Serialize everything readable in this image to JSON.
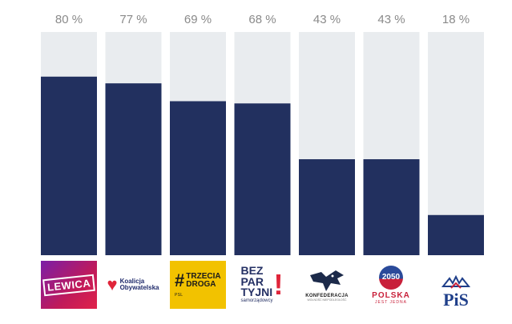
{
  "chart_data": {
    "type": "bar",
    "stacked_background": true,
    "categories": [
      "Lewica",
      "Koalicja Obywatelska",
      "Trzecia Droga",
      "Bezpartyjni Samorządowcy",
      "Konfederacja",
      "Polska 2050",
      "PiS"
    ],
    "values": [
      80,
      77,
      69,
      68,
      43,
      43,
      18
    ],
    "value_labels": [
      "80 %",
      "77 %",
      "69 %",
      "68 %",
      "43 %",
      "43 %",
      "18 %"
    ],
    "ylim": [
      0,
      100
    ],
    "colors": {
      "bar": "#22305f",
      "background": "#e9ecef",
      "label": "#8a8a8a"
    },
    "grid": false,
    "legend": "none"
  },
  "logos": {
    "lewica": {
      "text": "LEWICA"
    },
    "ko": {
      "line1": "Koalicja",
      "line2": "Obywatelska"
    },
    "td": {
      "hash": "#",
      "line1": "TRZECIA",
      "line2": "DROGA",
      "foot": "PSL"
    },
    "bp": {
      "line1": "BEZ",
      "line2": "PAR",
      "line3": "TYJNI",
      "excl": "!",
      "sub": "samorządowcy"
    },
    "kf": {
      "name": "KONFEDERACJA",
      "sub": "WOLNOŚĆ NIEPODLEGŁOŚĆ"
    },
    "pol": {
      "badge": "2050",
      "name": "POLSKA",
      "sub": "JEST JEDNA"
    },
    "pis": {
      "name": "PiS"
    }
  }
}
